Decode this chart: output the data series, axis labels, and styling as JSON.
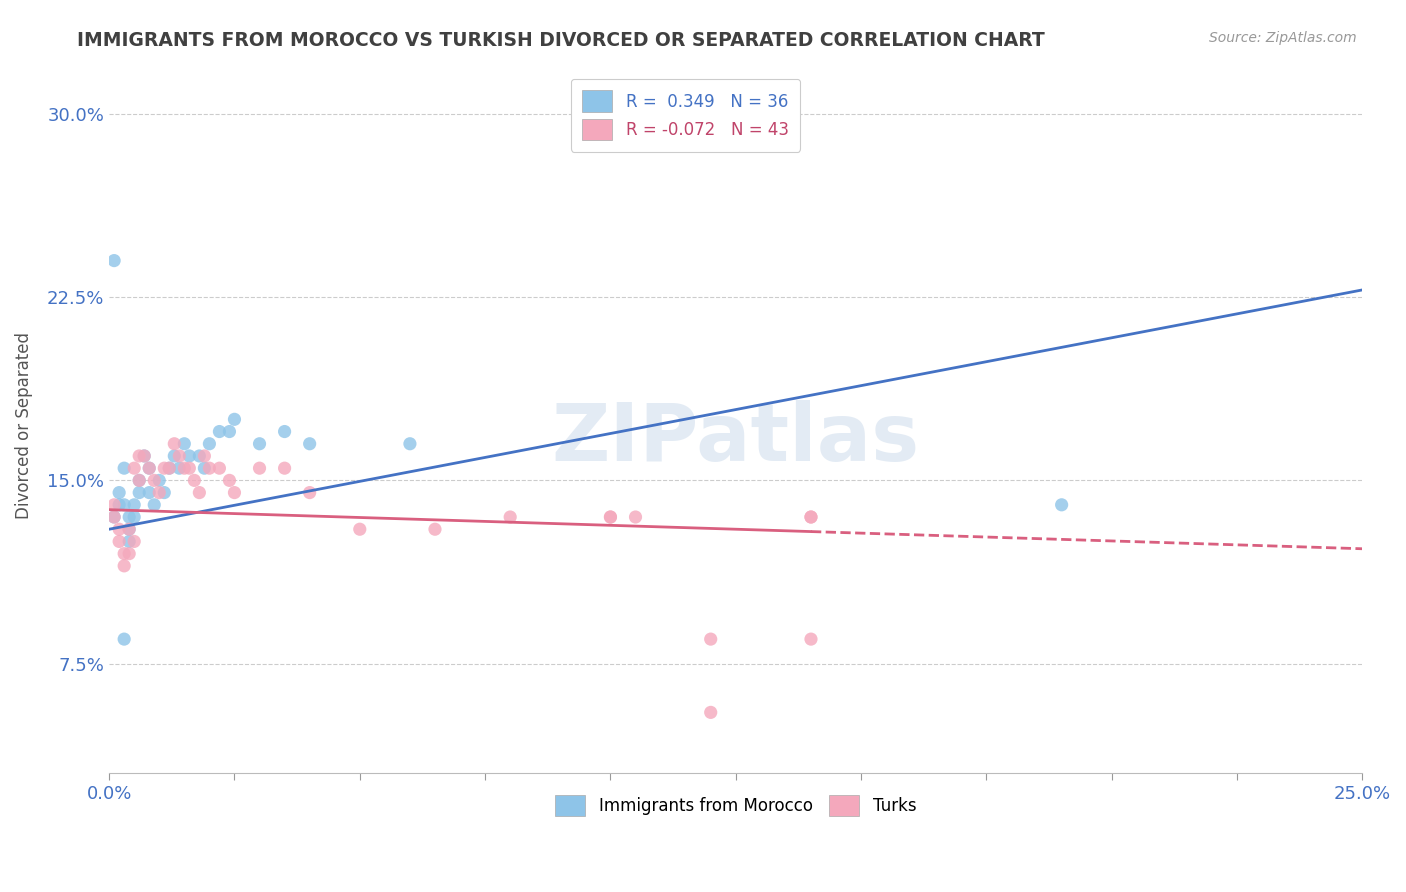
{
  "title": "IMMIGRANTS FROM MOROCCO VS TURKISH DIVORCED OR SEPARATED CORRELATION CHART",
  "source_text": "Source: ZipAtlas.com",
  "ylabel": "Divorced or Separated",
  "xlabel": "",
  "xlim": [
    0.0,
    0.25
  ],
  "ylim": [
    0.03,
    0.315
  ],
  "xticks": [
    0.0,
    0.025,
    0.05,
    0.075,
    0.1,
    0.125,
    0.15,
    0.175,
    0.2,
    0.225,
    0.25
  ],
  "xticklabels": [
    "0.0%",
    "",
    "",
    "",
    "",
    "",
    "",
    "",
    "",
    "",
    "25.0%"
  ],
  "yticks": [
    0.075,
    0.15,
    0.225,
    0.3
  ],
  "yticklabels": [
    "7.5%",
    "15.0%",
    "22.5%",
    "30.0%"
  ],
  "blue_color": "#8ec4e8",
  "pink_color": "#f4a8bc",
  "blue_line_color": "#4472c4",
  "pink_line_color": "#d95f7f",
  "legend_r1": "R =  0.349   N = 36",
  "legend_r2": "R = -0.072   N = 43",
  "watermark": "ZIPatlas",
  "blue_x": [
    0.001,
    0.001,
    0.002,
    0.002,
    0.003,
    0.003,
    0.004,
    0.004,
    0.004,
    0.005,
    0.005,
    0.006,
    0.006,
    0.007,
    0.008,
    0.008,
    0.009,
    0.01,
    0.011,
    0.012,
    0.013,
    0.014,
    0.015,
    0.016,
    0.018,
    0.019,
    0.02,
    0.022,
    0.024,
    0.025,
    0.03,
    0.035,
    0.04,
    0.06,
    0.19,
    0.003
  ],
  "blue_y": [
    0.135,
    0.24,
    0.145,
    0.14,
    0.155,
    0.14,
    0.135,
    0.13,
    0.125,
    0.14,
    0.135,
    0.15,
    0.145,
    0.16,
    0.155,
    0.145,
    0.14,
    0.15,
    0.145,
    0.155,
    0.16,
    0.155,
    0.165,
    0.16,
    0.16,
    0.155,
    0.165,
    0.17,
    0.17,
    0.175,
    0.165,
    0.17,
    0.165,
    0.165,
    0.14,
    0.085
  ],
  "pink_x": [
    0.001,
    0.001,
    0.002,
    0.002,
    0.003,
    0.003,
    0.004,
    0.004,
    0.005,
    0.005,
    0.006,
    0.006,
    0.007,
    0.008,
    0.009,
    0.01,
    0.011,
    0.012,
    0.013,
    0.014,
    0.015,
    0.016,
    0.017,
    0.018,
    0.019,
    0.02,
    0.022,
    0.024,
    0.025,
    0.03,
    0.035,
    0.04,
    0.05,
    0.065,
    0.1,
    0.12,
    0.14,
    0.14,
    0.14,
    0.12,
    0.1,
    0.08,
    0.105
  ],
  "pink_y": [
    0.14,
    0.135,
    0.13,
    0.125,
    0.12,
    0.115,
    0.12,
    0.13,
    0.125,
    0.155,
    0.15,
    0.16,
    0.16,
    0.155,
    0.15,
    0.145,
    0.155,
    0.155,
    0.165,
    0.16,
    0.155,
    0.155,
    0.15,
    0.145,
    0.16,
    0.155,
    0.155,
    0.15,
    0.145,
    0.155,
    0.155,
    0.145,
    0.13,
    0.13,
    0.135,
    0.085,
    0.135,
    0.085,
    0.135,
    0.055,
    0.135,
    0.135,
    0.135
  ],
  "bg_color": "#ffffff",
  "grid_color": "#cccccc",
  "title_color": "#404040",
  "axis_label_color": "#555555",
  "tick_color": "#4472c4",
  "blue_line_start_y": 0.13,
  "blue_line_end_y": 0.228,
  "pink_line_start_y": 0.138,
  "pink_line_end_y": 0.122
}
